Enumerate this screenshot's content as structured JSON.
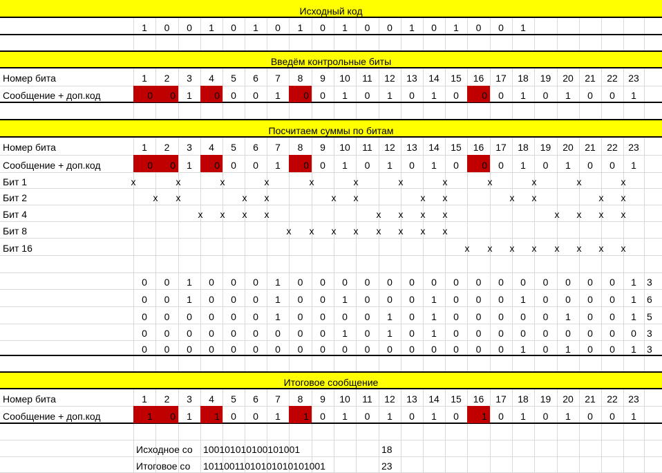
{
  "colors": {
    "banner": "#ffff00",
    "highlight": "#c00000",
    "grid": "#d9d9d9",
    "border": "#000000"
  },
  "sections": {
    "source": "Исходный код",
    "control": "Введём контрольные биты",
    "sums": "Посчитаем суммы по битам",
    "final": "Итоговое сообщение"
  },
  "source_bits": [
    "1",
    "0",
    "0",
    "1",
    "0",
    "1",
    "0",
    "1",
    "0",
    "1",
    "0",
    "0",
    "1",
    "0",
    "1",
    "0",
    "0",
    "1"
  ],
  "labels": {
    "bit_number": "Номер бита",
    "message": "Сообщение + доп.код",
    "bit_rows": [
      "Бит 1",
      "Бит 2",
      "Бит 4",
      "Бит 8",
      "Бит 16"
    ]
  },
  "bit_numbers": [
    "1",
    "2",
    "3",
    "4",
    "5",
    "6",
    "7",
    "8",
    "9",
    "10",
    "11",
    "12",
    "13",
    "14",
    "15",
    "16",
    "17",
    "18",
    "19",
    "20",
    "21",
    "22",
    "23"
  ],
  "message_with_control": [
    "0",
    "0",
    "1",
    "0",
    "0",
    "0",
    "1",
    "0",
    "0",
    "1",
    "0",
    "1",
    "0",
    "1",
    "0",
    "0",
    "0",
    "1",
    "0",
    "1",
    "0",
    "0",
    "1"
  ],
  "control_positions": [
    1,
    2,
    4,
    8,
    16
  ],
  "coverage": [
    [
      1,
      3,
      5,
      7,
      9,
      11,
      13,
      15,
      17,
      19,
      21,
      23
    ],
    [
      2,
      3,
      6,
      7,
      10,
      11,
      14,
      15,
      18,
      19,
      22,
      23
    ],
    [
      4,
      5,
      6,
      7,
      12,
      13,
      14,
      15,
      20,
      21,
      22,
      23
    ],
    [
      8,
      9,
      10,
      11,
      12,
      13,
      14,
      15
    ],
    [
      16,
      17,
      18,
      19,
      20,
      21,
      22,
      23
    ]
  ],
  "mark": "x",
  "sum_rows": [
    {
      "values": [
        "0",
        "0",
        "1",
        "0",
        "0",
        "0",
        "1",
        "0",
        "0",
        "0",
        "0",
        "0",
        "0",
        "0",
        "0",
        "0",
        "0",
        "0",
        "0",
        "0",
        "0",
        "0",
        "1"
      ],
      "total": "3"
    },
    {
      "values": [
        "0",
        "0",
        "1",
        "0",
        "0",
        "0",
        "1",
        "0",
        "0",
        "1",
        "0",
        "0",
        "0",
        "1",
        "0",
        "0",
        "0",
        "1",
        "0",
        "0",
        "0",
        "0",
        "1"
      ],
      "total": "6"
    },
    {
      "values": [
        "0",
        "0",
        "0",
        "0",
        "0",
        "0",
        "1",
        "0",
        "0",
        "0",
        "0",
        "1",
        "0",
        "1",
        "0",
        "0",
        "0",
        "0",
        "0",
        "1",
        "0",
        "0",
        "1"
      ],
      "total": "5"
    },
    {
      "values": [
        "0",
        "0",
        "0",
        "0",
        "0",
        "0",
        "0",
        "0",
        "0",
        "1",
        "0",
        "1",
        "0",
        "1",
        "0",
        "0",
        "0",
        "0",
        "0",
        "0",
        "0",
        "0",
        "0"
      ],
      "total": "3"
    },
    {
      "values": [
        "0",
        "0",
        "0",
        "0",
        "0",
        "0",
        "0",
        "0",
        "0",
        "0",
        "0",
        "0",
        "0",
        "0",
        "0",
        "0",
        "0",
        "1",
        "0",
        "1",
        "0",
        "0",
        "1"
      ],
      "total": "3"
    }
  ],
  "final_message": [
    "1",
    "0",
    "1",
    "1",
    "0",
    "0",
    "1",
    "1",
    "0",
    "1",
    "0",
    "1",
    "0",
    "1",
    "0",
    "1",
    "0",
    "1",
    "0",
    "1",
    "0",
    "0",
    "1"
  ],
  "summary": [
    {
      "label": "Исходное со",
      "code": "100101010100101001",
      "length": "18"
    },
    {
      "label": "Итоговое со",
      "code": "10110011010101010101001",
      "length": "23"
    }
  ]
}
